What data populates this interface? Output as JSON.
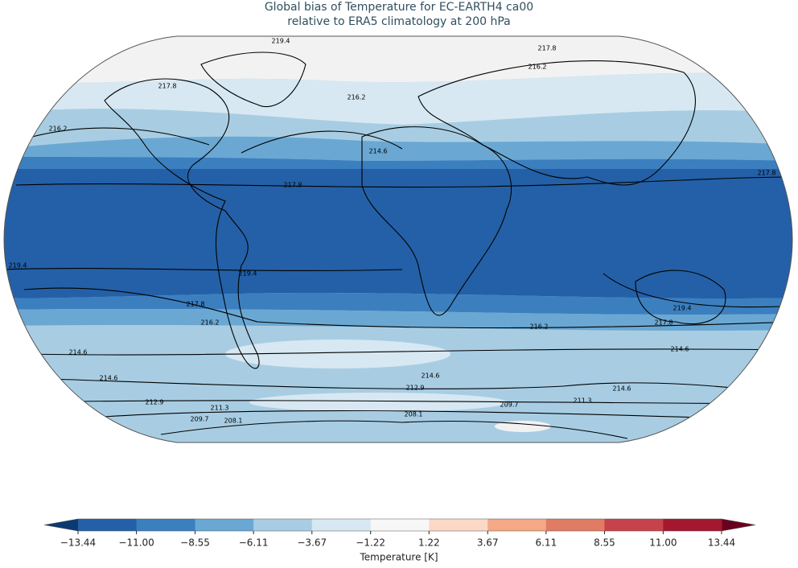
{
  "title": [
    "Global bias of Temperature for EC-EARTH4 ca00",
    "relative to ERA5 climatology at 200 hPa"
  ],
  "contour_labels": [
    219.4,
    217.8,
    216.2,
    217.8,
    216.2,
    216.2,
    214.6,
    217.8,
    217.8,
    219.4,
    219.4,
    217.8,
    219.4,
    216.2,
    217.8,
    216.2,
    214.6,
    214.6,
    214.6,
    214.6,
    212.9,
    214.6,
    212.9,
    209.7,
    211.3,
    211.3,
    208.1,
    209.7,
    208.1
  ],
  "colorbar": {
    "label": "Temperature [K]",
    "ticks": [
      {
        "value": -13.44,
        "label": "−13.44"
      },
      {
        "value": -11,
        "label": "−11.00"
      },
      {
        "value": -8.55,
        "label": "−8.55"
      },
      {
        "value": -6.11,
        "label": "−6.11"
      },
      {
        "value": -3.67,
        "label": "−3.67"
      },
      {
        "value": -1.22,
        "label": "−1.22"
      },
      1.22,
      3.67,
      6.11,
      8.55,
      {
        "value": 11,
        "label": "11.00"
      },
      13.44
    ],
    "colors": [
      "#0b3a70",
      "#2460a7",
      "#3b7fbf",
      "#6aa8d3",
      "#a8cde3",
      "#d7e8f2",
      "#f7f7f7",
      "#fbd9c6",
      "#f4a886",
      "#e07c64",
      "#c6434b",
      "#a3182f",
      "#6a0020"
    ]
  }
}
